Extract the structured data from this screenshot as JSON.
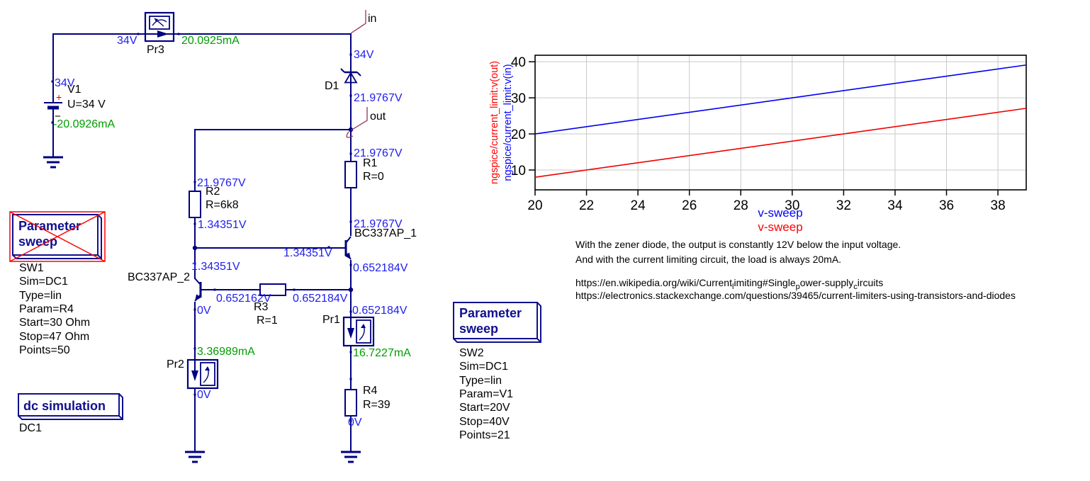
{
  "colors": {
    "wire": "#000080",
    "voltage_label": "#2020ee",
    "current_label": "#009e00",
    "net_label_line": "#96325a",
    "selection_red": "#ff0000",
    "sim_title": "#10108e",
    "grid": "#c9c9c9"
  },
  "schematic": {
    "v1": {
      "name": "V1",
      "value": "U=34 V",
      "plus": "+",
      "minus": "−",
      "node_v": "34V",
      "current": "-20.0926mA"
    },
    "pr3": {
      "name": "Pr3",
      "v_left": "34V",
      "current": "20.0925mA"
    },
    "net_in": "in",
    "net_out": "out",
    "d1": {
      "name": "D1",
      "v_above": "34V",
      "v_below": "21.9767V"
    },
    "r1": {
      "name": "R1",
      "value": "R=0",
      "v_top": "21.9767V"
    },
    "q1": {
      "name": "BC337AP_1",
      "v_collector": "21.9767V",
      "v_base": "1.34351V",
      "v_emitter": "0.652184V"
    },
    "r2": {
      "name": "R2",
      "value": "R=6k8",
      "v_top": "21.9767V",
      "v_bottom": "1.34351V"
    },
    "q2": {
      "name": "BC337AP_2",
      "v_collector": "1.34351V",
      "v_emitter": "0V"
    },
    "r3": {
      "name": "R3",
      "value": "R=1",
      "v_left": "0.652162V",
      "v_right": "0.652184V"
    },
    "pr1": {
      "name": "Pr1",
      "v_top": "0.652184V",
      "current": "16.7227mA"
    },
    "pr2": {
      "name": "Pr2",
      "current": "3.36989mA",
      "v_bottom": "0V"
    },
    "r4": {
      "name": "R4",
      "value": "R=39",
      "v_bottom": "0V"
    }
  },
  "sim": {
    "sw1": {
      "title1": "Parameter",
      "title2": "sweep",
      "disabled": true,
      "props": [
        "SW1",
        "Sim=DC1",
        "Type=lin",
        "Param=R4",
        "Start=30 Ohm",
        "Stop=47 Ohm",
        "Points=50"
      ]
    },
    "dc1": {
      "title": "dc simulation",
      "props": [
        "DC1"
      ]
    },
    "sw2": {
      "title1": "Parameter",
      "title2": "sweep",
      "disabled": false,
      "props": [
        "SW2",
        "Sim=DC1",
        "Type=lin",
        "Param=V1",
        "Start=20V",
        "Stop=40V",
        "Points=21"
      ]
    }
  },
  "notes": {
    "line1": "With the zener diode, the output is constantly 12V below the input voltage.",
    "line2": "And with the current limiting circuit, the load is always 20mA.",
    "url1_parts": [
      {
        "t": "https://en.wikipedia.org/wiki/Current"
      },
      {
        "t": "l",
        "sub": true
      },
      {
        "t": "imiting#Single"
      },
      {
        "t": "p",
        "sub": true
      },
      {
        "t": "ower-supply"
      },
      {
        "t": "c",
        "sub": true
      },
      {
        "t": "ircuits"
      }
    ],
    "url2": "https://electronics.stackexchange.com/questions/39465/current-limiters-using-transistors-and-diodes"
  },
  "chart_data": {
    "type": "line",
    "title": "",
    "xlabel": "v-sweep",
    "ylabel": "",
    "x_range": [
      20,
      39.1
    ],
    "y_range": [
      4.5,
      41.8
    ],
    "x_ticks": [
      20,
      22,
      24,
      26,
      28,
      30,
      32,
      34,
      36,
      38
    ],
    "y_ticks": [
      10,
      20,
      30,
      40
    ],
    "grid": true,
    "legend_position": "left-axis-rotated",
    "x_axis_labels": [
      {
        "text": "v-sweep",
        "color": "#0000ff"
      },
      {
        "text": "v-sweep",
        "color": "#ff0000"
      }
    ],
    "y_axis_labels": [
      {
        "text": "ngspice/current_limit:v(out)",
        "color": "#ff0000"
      },
      {
        "text": "ngspice/current_limit:v(in)",
        "color": "#0000ff"
      }
    ],
    "series": [
      {
        "name": "ngspice/current_limit:v(in)",
        "color": "#0000ee",
        "x": [
          20,
          39.1
        ],
        "y": [
          20,
          39.1
        ],
        "relation": "v(in) = v-sweep"
      },
      {
        "name": "ngspice/current_limit:v(out)",
        "color": "#ee0000",
        "x": [
          20,
          39.1
        ],
        "y": [
          8,
          27.1
        ],
        "relation": "v(out) = v-sweep - 12"
      }
    ]
  }
}
